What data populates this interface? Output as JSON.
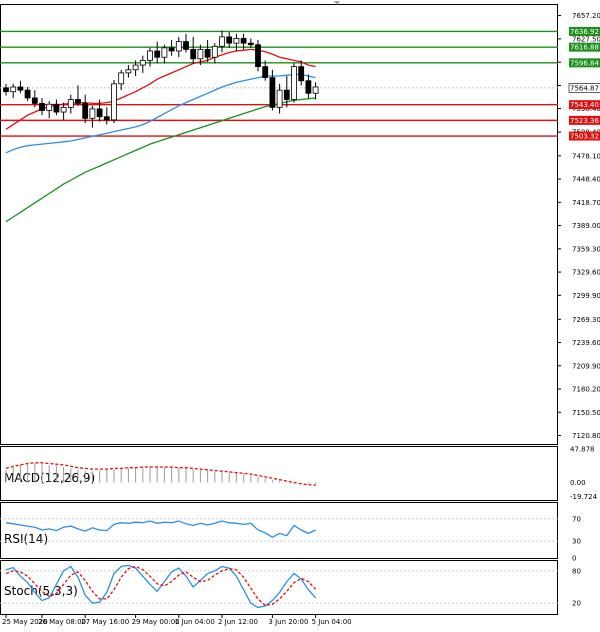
{
  "chart_data": {
    "type": "candlestick",
    "main": {
      "ylim": [
        7110,
        7672
      ],
      "y_ticks": [
        7657.2,
        7627.5,
        7597.7,
        7567.9,
        7538.4,
        7508.4,
        7478.1,
        7448.4,
        7418.7,
        7389.0,
        7359.3,
        7329.6,
        7299.9,
        7269.3,
        7239.6,
        7209.9,
        7180.2,
        7150.5,
        7120.8
      ],
      "y_tick_labels": [
        "7657.20",
        "7627.50",
        "7597.70",
        "7567.90",
        "7538.40",
        "7508.40",
        "7478.10",
        "7448.40",
        "7418.70",
        "7389.00",
        "7359.30",
        "7329.60",
        "7299.90",
        "7269.30",
        "7239.60",
        "7209.90",
        "7180.20",
        "7150.50",
        "7120.80"
      ],
      "levels": [
        {
          "value": 7636.92,
          "label": "7636.92",
          "color": "#1c8f1c"
        },
        {
          "value": 7616.88,
          "label": "7616.88",
          "color": "#1c8f1c"
        },
        {
          "value": 7596.84,
          "label": "7596.84",
          "color": "#1c8f1c"
        },
        {
          "value": 7543.4,
          "label": "7543.40",
          "color": "#e01010"
        },
        {
          "value": 7523.36,
          "label": "7523.36",
          "color": "#e01010"
        },
        {
          "value": 7503.32,
          "label": "7503.32",
          "color": "#e01010"
        }
      ],
      "current_price": {
        "value": 7564.87,
        "label": "7564.87"
      },
      "candles": [
        [
          7565,
          7570,
          7555,
          7560
        ],
        [
          7560,
          7570,
          7552,
          7566
        ],
        [
          7566,
          7574,
          7558,
          7562
        ],
        [
          7562,
          7566,
          7548,
          7552
        ],
        [
          7552,
          7562,
          7540,
          7545
        ],
        [
          7545,
          7552,
          7530,
          7536
        ],
        [
          7536,
          7548,
          7526,
          7544
        ],
        [
          7544,
          7550,
          7530,
          7534
        ],
        [
          7534,
          7546,
          7524,
          7540
        ],
        [
          7540,
          7556,
          7532,
          7550
        ],
        [
          7550,
          7568,
          7542,
          7545
        ],
        [
          7545,
          7556,
          7520,
          7526
        ],
        [
          7526,
          7542,
          7514,
          7538
        ],
        [
          7538,
          7550,
          7522,
          7528
        ],
        [
          7528,
          7540,
          7518,
          7524
        ],
        [
          7524,
          7575,
          7520,
          7570
        ],
        [
          7570,
          7588,
          7562,
          7584
        ],
        [
          7584,
          7594,
          7578,
          7588
        ],
        [
          7588,
          7600,
          7580,
          7594
        ],
        [
          7594,
          7606,
          7584,
          7600
        ],
        [
          7600,
          7616,
          7592,
          7612
        ],
        [
          7612,
          7624,
          7596,
          7604
        ],
        [
          7604,
          7620,
          7596,
          7616
        ],
        [
          7616,
          7626,
          7606,
          7612
        ],
        [
          7612,
          7630,
          7604,
          7624
        ],
        [
          7624,
          7634,
          7610,
          7614
        ],
        [
          7614,
          7630,
          7596,
          7602
        ],
        [
          7602,
          7620,
          7594,
          7614
        ],
        [
          7614,
          7626,
          7598,
          7604
        ],
        [
          7604,
          7622,
          7596,
          7618
        ],
        [
          7618,
          7638,
          7610,
          7630
        ],
        [
          7630,
          7636,
          7616,
          7622
        ],
        [
          7622,
          7634,
          7612,
          7628
        ],
        [
          7628,
          7634,
          7614,
          7622
        ],
        [
          7622,
          7628,
          7616,
          7620
        ],
        [
          7620,
          7626,
          7586,
          7592
        ],
        [
          7592,
          7600,
          7574,
          7578
        ],
        [
          7578,
          7588,
          7536,
          7540
        ],
        [
          7540,
          7570,
          7532,
          7562
        ],
        [
          7562,
          7580,
          7540,
          7550
        ],
        [
          7550,
          7596,
          7546,
          7592
        ],
        [
          7592,
          7600,
          7568,
          7574
        ],
        [
          7574,
          7582,
          7552,
          7558
        ],
        [
          7558,
          7572,
          7550,
          7566
        ]
      ],
      "ma_red": [
        7512,
        7518,
        7524,
        7530,
        7534,
        7538,
        7541,
        7543,
        7544,
        7545,
        7546,
        7546,
        7545,
        7545,
        7546,
        7548,
        7552,
        7556,
        7560,
        7565,
        7570,
        7576,
        7580,
        7584,
        7588,
        7592,
        7596,
        7598,
        7600,
        7604,
        7607,
        7610,
        7612,
        7613,
        7614,
        7613,
        7611,
        7608,
        7604,
        7602,
        7600,
        7598,
        7594,
        7592
      ],
      "ma_blue": [
        7482,
        7486,
        7489,
        7491,
        7492,
        7493,
        7494,
        7495,
        7496,
        7497,
        7499,
        7501,
        7503,
        7505,
        7507,
        7509,
        7511,
        7513,
        7515,
        7518,
        7522,
        7527,
        7532,
        7537,
        7542,
        7546,
        7550,
        7554,
        7558,
        7562,
        7566,
        7569,
        7572,
        7574,
        7576,
        7578,
        7580,
        7580,
        7580,
        7581,
        7582,
        7582,
        7580,
        7578
      ],
      "ma_green": [
        7394,
        7400,
        7406,
        7412,
        7418,
        7424,
        7430,
        7436,
        7442,
        7447,
        7452,
        7457,
        7461,
        7465,
        7469,
        7473,
        7477,
        7481,
        7485,
        7489,
        7493,
        7496,
        7499,
        7502,
        7505,
        7508,
        7511,
        7514,
        7517,
        7520,
        7523,
        7526,
        7529,
        7532,
        7535,
        7538,
        7541,
        7543,
        7545,
        7547,
        7549,
        7550,
        7551,
        7552
      ],
      "colors": {
        "up": "#1c8f1c",
        "down": "#e01010",
        "ma_red": "#e01010",
        "ma_blue": "#2a8fe8",
        "ma_green": "#1c8f1c"
      }
    },
    "macd": {
      "label": "MACD(12,26,9)",
      "ylim": [
        -25,
        52
      ],
      "y_ticks": [
        47.878,
        0.0,
        -19.724
      ],
      "y_tick_labels": [
        "47.878",
        "0.00",
        "-19.724"
      ],
      "histogram": [
        18,
        22,
        25,
        26,
        27,
        26,
        25,
        24,
        22,
        20,
        18,
        17,
        16,
        17,
        18,
        19,
        20,
        21,
        22,
        22,
        23,
        23,
        22,
        22,
        21,
        20,
        19,
        18,
        17,
        16,
        15,
        14,
        13,
        12,
        10,
        8,
        6,
        4,
        2,
        0,
        -1,
        -2,
        -2,
        -3
      ],
      "signal": [
        20,
        23,
        25,
        27,
        28,
        28,
        27,
        26,
        25,
        23,
        21,
        20,
        19,
        19,
        19,
        20,
        20,
        21,
        21,
        22,
        22,
        22,
        22,
        22,
        21,
        21,
        20,
        19,
        18,
        17,
        16,
        15,
        14,
        13,
        12,
        10,
        8,
        6,
        4,
        2,
        0,
        -2,
        -3,
        -4
      ],
      "colors": {
        "histogram": "#9a9a9a",
        "signal": "#e01010"
      }
    },
    "rsi": {
      "label": "RSI(14)",
      "ylim": [
        0,
        100
      ],
      "y_ticks": [
        70,
        30,
        0
      ],
      "y_tick_labels": [
        "70",
        "30",
        "0"
      ],
      "values": [
        63,
        61,
        59,
        57,
        55,
        50,
        52,
        49,
        55,
        57,
        52,
        48,
        54,
        50,
        49,
        60,
        63,
        62,
        64,
        63,
        66,
        62,
        64,
        63,
        66,
        61,
        58,
        62,
        59,
        62,
        66,
        63,
        62,
        60,
        62,
        50,
        45,
        37,
        44,
        40,
        58,
        50,
        44,
        50
      ],
      "color": "#2a8fe8"
    },
    "stoch": {
      "label": "Stoch(5,3,3)",
      "ylim": [
        0,
        100
      ],
      "y_ticks": [
        80,
        20
      ],
      "y_tick_labels": [
        "80",
        "20"
      ],
      "k": [
        82,
        86,
        70,
        58,
        40,
        25,
        30,
        55,
        80,
        88,
        68,
        35,
        20,
        22,
        40,
        75,
        88,
        90,
        85,
        70,
        55,
        42,
        60,
        78,
        85,
        70,
        50,
        62,
        75,
        80,
        88,
        85,
        70,
        45,
        20,
        12,
        15,
        25,
        40,
        60,
        75,
        65,
        45,
        30
      ],
      "d": [
        75,
        80,
        78,
        70,
        56,
        42,
        33,
        38,
        55,
        72,
        78,
        62,
        42,
        28,
        28,
        45,
        68,
        84,
        88,
        82,
        70,
        56,
        52,
        60,
        72,
        78,
        68,
        60,
        62,
        72,
        80,
        84,
        82,
        68,
        48,
        28,
        16,
        18,
        28,
        42,
        58,
        66,
        60,
        46
      ],
      "colors": {
        "k": "#2a8fe8",
        "d": "#e01010"
      }
    },
    "x_ticks": [
      {
        "index": 0,
        "label": "25 May 2020"
      },
      {
        "index": 5,
        "label": "26 May 08:00"
      },
      {
        "index": 11,
        "label": "27 May 16:00"
      },
      {
        "index": 18,
        "label": "29 May 00:00"
      },
      {
        "index": 24,
        "label": "1 Jun 04:00"
      },
      {
        "index": 30,
        "label": "2 Jun 12:00"
      },
      {
        "index": 37,
        "label": "3 Jun 20:00"
      },
      {
        "index": 43,
        "label": "5 Jun 04:00"
      }
    ]
  }
}
